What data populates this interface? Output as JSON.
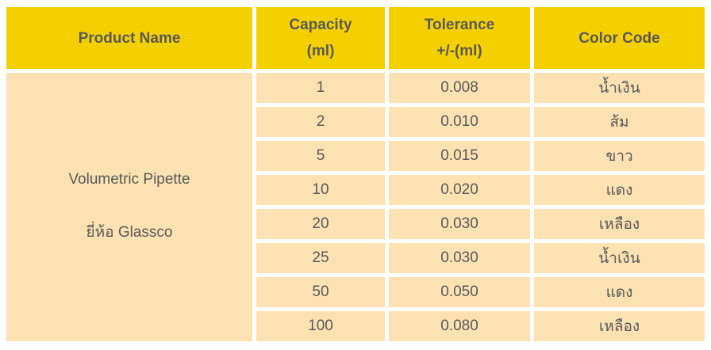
{
  "table": {
    "headers": {
      "product": "Product Name",
      "capacity_line1": "Capacity",
      "capacity_line2": "(ml)",
      "tolerance_line1": "Tolerance",
      "tolerance_line2": "+/-(ml)",
      "color": "Color Code"
    },
    "product_cell": {
      "line1": "Volumetric Pipette",
      "line2": "ยี่ห้อ Glassco"
    },
    "rows": [
      {
        "capacity": "1",
        "tolerance": "0.008",
        "color": "น้ำเงิน"
      },
      {
        "capacity": "2",
        "tolerance": "0.010",
        "color": "ส้ม"
      },
      {
        "capacity": "5",
        "tolerance": "0.015",
        "color": "ขาว"
      },
      {
        "capacity": "10",
        "tolerance": "0.020",
        "color": "แดง"
      },
      {
        "capacity": "20",
        "tolerance": "0.030",
        "color": "เหลือง"
      },
      {
        "capacity": "25",
        "tolerance": "0.030",
        "color": "น้ำเงิน"
      },
      {
        "capacity": "50",
        "tolerance": "0.050",
        "color": "แดง"
      },
      {
        "capacity": "100",
        "tolerance": "0.080",
        "color": "เหลือง"
      }
    ],
    "colors": {
      "header_bg": "#F5D000",
      "body_bg": "#FCE2B2",
      "text": "#595959",
      "page_bg": "#FFFFFF"
    }
  }
}
